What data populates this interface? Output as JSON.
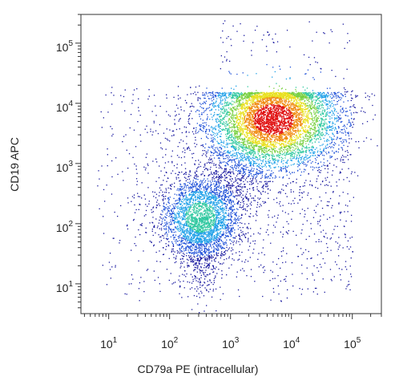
{
  "chart_data": {
    "type": "scatter",
    "plot_style": "density-dot-plot",
    "xlabel": "CD79a PE (intracellular)",
    "ylabel": "CD19 APC",
    "x_scale": "log",
    "y_scale": "log",
    "xlim": [
      3.5,
      300000
    ],
    "ylim": [
      3.2,
      300000
    ],
    "x_ticks": [
      {
        "base": "10",
        "exp": "1",
        "value": 10
      },
      {
        "base": "10",
        "exp": "2",
        "value": 100
      },
      {
        "base": "10",
        "exp": "3",
        "value": 1000
      },
      {
        "base": "10",
        "exp": "4",
        "value": 10000
      },
      {
        "base": "10",
        "exp": "5",
        "value": 100000
      }
    ],
    "y_ticks": [
      {
        "base": "10",
        "exp": "1",
        "value": 10
      },
      {
        "base": "10",
        "exp": "2",
        "value": 100
      },
      {
        "base": "10",
        "exp": "3",
        "value": 1000
      },
      {
        "base": "10",
        "exp": "4",
        "value": 10000
      },
      {
        "base": "10",
        "exp": "5",
        "value": 100000
      }
    ],
    "populations": [
      {
        "center_x": 5000,
        "center_y": 5500,
        "spread_x_decades": 0.55,
        "spread_y_decades": 0.42,
        "relative_density": 1.0
      },
      {
        "center_x": 320,
        "center_y": 130,
        "spread_x_decades": 0.35,
        "spread_y_decades": 0.35,
        "relative_density": 0.35
      }
    ],
    "colormap": [
      "#1a1aa0",
      "#1e50d8",
      "#1ea0e8",
      "#30c8a0",
      "#78d040",
      "#e8e020",
      "#f08a10",
      "#e01010"
    ],
    "grid": false,
    "legend": "none"
  }
}
